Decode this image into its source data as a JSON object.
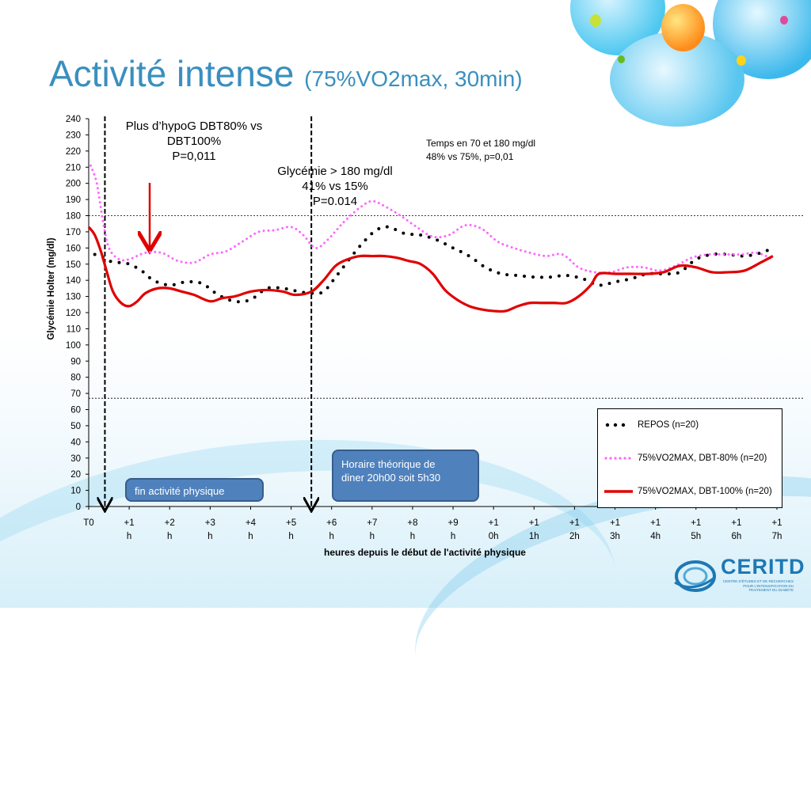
{
  "slide": {
    "title": "Activité intense",
    "title_sub": "(75%VO2max, 30min)"
  },
  "annotations": {
    "hypo_line1": "Plus d’hypoG  DBT80% vs",
    "hypo_line2": "DBT100%",
    "hypo_line3": "P=0,011",
    "hyper_line1": "Glycémie > 180 mg/dl",
    "hyper_line2": "41%  vs 15%",
    "hyper_line3": "P=0.014",
    "range_line1": "Temps en 70 et 180 mg/dl",
    "range_line2": "48% vs 75%, p=0,01",
    "callout_end": "fin activité physique",
    "callout_dinner_1": "Horaire théorique de",
    "callout_dinner_2": "diner 20h00 soit 5h30"
  },
  "logo": {
    "name": "CERITD",
    "tagline": "CENTRE D'ÉTUDES ET DE RECHERCHES POUR L'INTENSIFICATION DU TRAITEMENT DU DIABÈTE"
  },
  "colors": {
    "title": "#3a8fbf",
    "repos": "#000000",
    "dbt80": "#ff66ff",
    "dbt100": "#e00000",
    "callout": "#4f81bd"
  },
  "chart_data": {
    "type": "line",
    "title": "",
    "xlabel": "heures depuis le début de l'activité physique",
    "ylabel": "Glycémie Holter  (mg/dl)",
    "ylim": [
      0,
      240
    ],
    "yticks": [
      0,
      10,
      20,
      30,
      40,
      50,
      60,
      70,
      80,
      90,
      100,
      110,
      120,
      130,
      140,
      150,
      160,
      170,
      180,
      190,
      200,
      210,
      220,
      230,
      240
    ],
    "xticks": [
      [
        "T0",
        ""
      ],
      [
        "+1",
        "h"
      ],
      [
        "+2",
        "h"
      ],
      [
        "+3",
        "h"
      ],
      [
        "+4",
        "h"
      ],
      [
        "+5",
        "h"
      ],
      [
        "+6",
        "h"
      ],
      [
        "+7",
        "h"
      ],
      [
        "+8",
        "h"
      ],
      [
        "+9",
        "h"
      ],
      [
        "+1",
        "0h"
      ],
      [
        "+1",
        "1h"
      ],
      [
        "+1",
        "2h"
      ],
      [
        "+1",
        "3h"
      ],
      [
        "+1",
        "4h"
      ],
      [
        "+1",
        "5h"
      ],
      [
        "+1",
        "6h"
      ],
      [
        "+1",
        "7h"
      ]
    ],
    "xlim": [
      0,
      17
    ],
    "reference_lines": [
      180,
      67
    ],
    "vertical_markers": [
      0.4,
      5.5
    ],
    "legend": "bottom-right",
    "series": [
      {
        "name": "REPOS (n=20)",
        "style": "dotted-black",
        "x": [
          0.15,
          0.3,
          0.5,
          0.75,
          1.0,
          1.3,
          1.6,
          2.0,
          2.4,
          2.8,
          3.2,
          3.6,
          4.0,
          4.4,
          4.8,
          5.2,
          5.5,
          5.8,
          6.1,
          6.5,
          6.8,
          7.1,
          7.4,
          7.8,
          8.2,
          8.6,
          9.0,
          9.4,
          9.8,
          10.2,
          10.6,
          11.0,
          11.4,
          11.8,
          12.2,
          12.6,
          13.0,
          13.4,
          13.8,
          14.2,
          14.6,
          15.0,
          15.4,
          15.8,
          16.2,
          16.6,
          16.9
        ],
        "values": [
          156,
          155,
          152,
          151,
          150,
          146,
          140,
          137,
          139,
          138,
          131,
          127,
          128,
          135,
          135,
          133,
          132,
          133,
          142,
          155,
          164,
          171,
          173,
          169,
          168,
          165,
          160,
          155,
          148,
          144,
          143,
          142,
          142,
          143,
          141,
          137,
          139,
          141,
          144,
          144,
          145,
          153,
          156,
          156,
          155,
          157,
          160
        ]
      },
      {
        "name": "75%VO2MAX, DBT-80% (n=20)",
        "style": "dotted-pink",
        "x": [
          0.05,
          0.2,
          0.35,
          0.5,
          0.75,
          1.0,
          1.4,
          1.8,
          2.2,
          2.6,
          3.0,
          3.4,
          3.8,
          4.2,
          4.6,
          5.0,
          5.3,
          5.6,
          5.9,
          6.3,
          6.7,
          7.0,
          7.3,
          7.7,
          8.1,
          8.5,
          8.9,
          9.3,
          9.7,
          10.1,
          10.5,
          10.9,
          11.3,
          11.7,
          12.1,
          12.5,
          12.9,
          13.3,
          13.7,
          14.1,
          14.5,
          14.9,
          15.3,
          15.7,
          16.1,
          16.5,
          16.9
        ],
        "values": [
          211,
          200,
          177,
          160,
          153,
          153,
          157,
          157,
          152,
          151,
          156,
          158,
          164,
          170,
          171,
          173,
          168,
          160,
          165,
          176,
          185,
          189,
          186,
          180,
          173,
          167,
          168,
          174,
          172,
          164,
          160,
          157,
          155,
          156,
          148,
          145,
          145,
          148,
          148,
          146,
          149,
          154,
          156,
          156,
          156,
          157,
          153
        ]
      },
      {
        "name": "75%VO2MAX, DBT-100% (n=20)",
        "style": "solid-red",
        "x": [
          0.0,
          0.15,
          0.3,
          0.45,
          0.6,
          0.8,
          1.0,
          1.2,
          1.4,
          1.7,
          2.0,
          2.3,
          2.6,
          3.0,
          3.3,
          3.6,
          4.0,
          4.4,
          4.8,
          5.1,
          5.5,
          5.8,
          6.1,
          6.4,
          6.7,
          7.0,
          7.3,
          7.6,
          7.9,
          8.2,
          8.5,
          8.8,
          9.1,
          9.4,
          9.7,
          10.0,
          10.3,
          10.6,
          10.9,
          11.2,
          11.5,
          11.8,
          12.1,
          12.4,
          12.6,
          13.0,
          13.4,
          13.8,
          14.2,
          14.6,
          15.0,
          15.4,
          15.8,
          16.2,
          16.6,
          16.9
        ],
        "values": [
          173,
          168,
          158,
          145,
          133,
          126,
          124,
          127,
          132,
          135,
          135,
          133,
          131,
          127,
          129,
          130,
          133,
          134,
          133,
          131,
          133,
          140,
          149,
          153,
          155,
          155,
          155,
          154,
          152,
          150,
          144,
          134,
          128,
          124,
          122,
          121,
          121,
          124,
          126,
          126,
          126,
          126,
          130,
          137,
          144,
          144,
          144,
          144,
          145,
          149,
          148,
          145,
          145,
          146,
          151,
          155
        ]
      }
    ]
  }
}
